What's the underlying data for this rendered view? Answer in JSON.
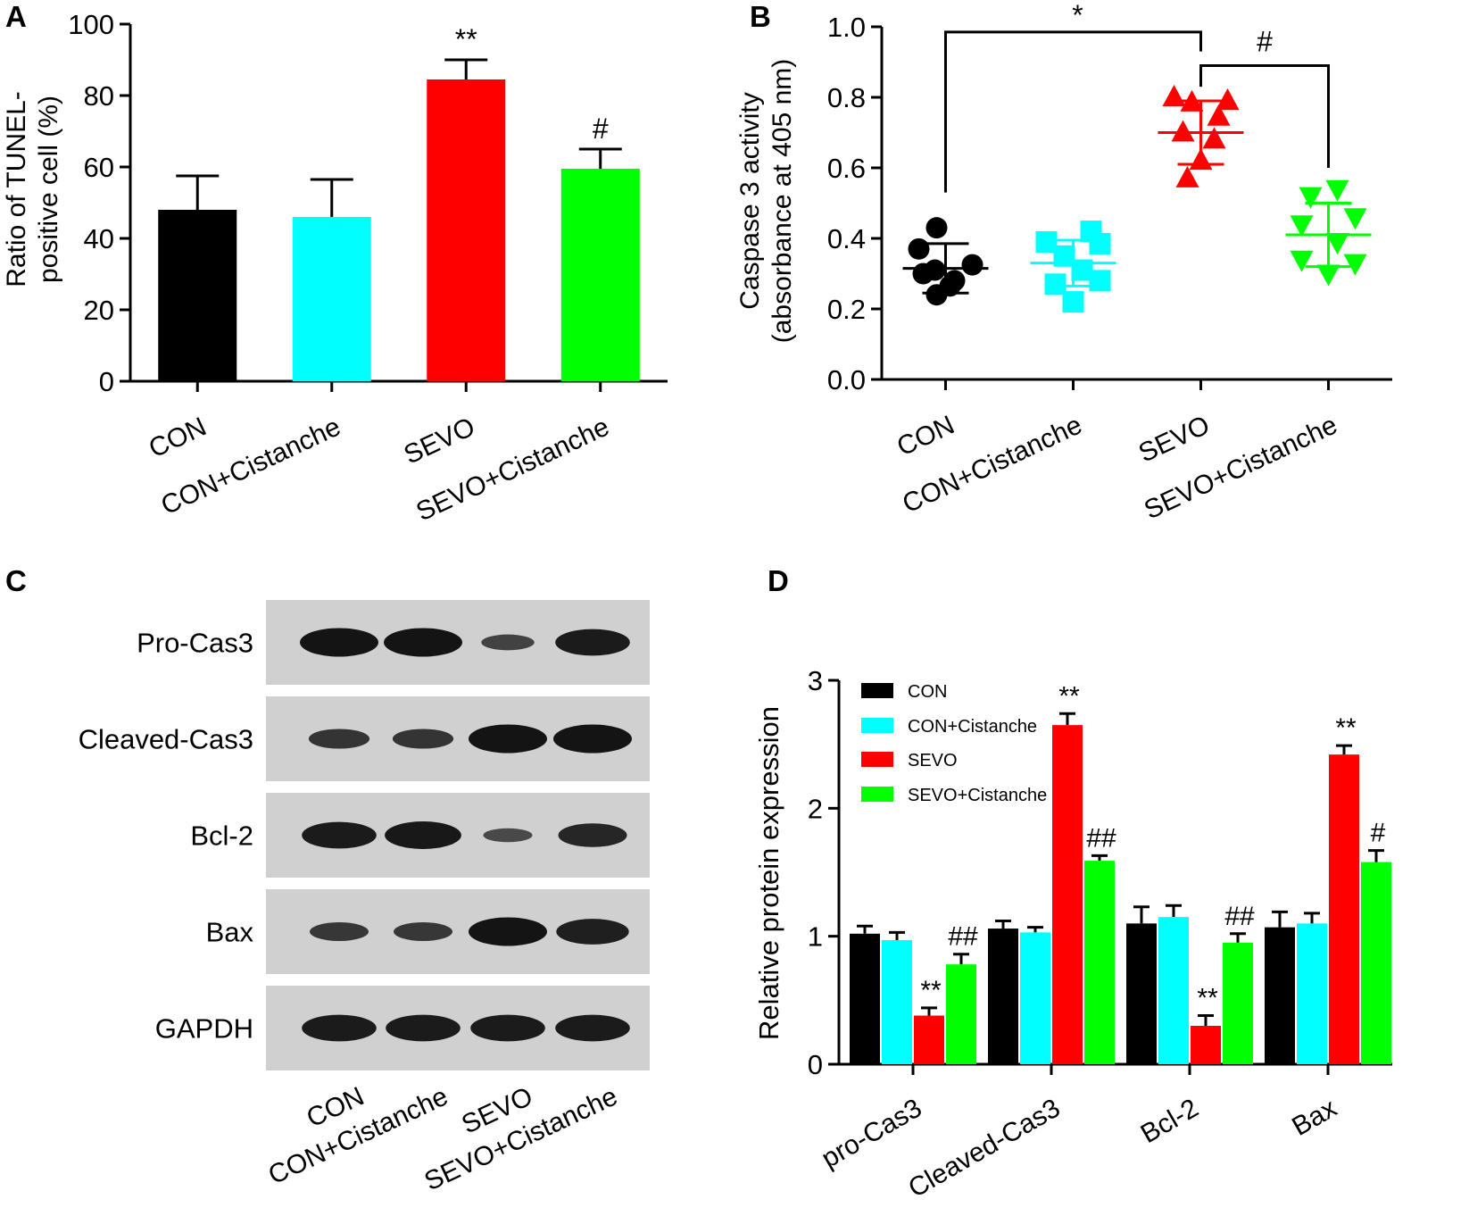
{
  "chart_data": [
    {
      "panel": "A",
      "type": "bar",
      "ylabel": [
        "Ratio of TUNEL-",
        "positive cell (%)"
      ],
      "ylim": [
        0,
        100
      ],
      "yticks": [
        0,
        20,
        40,
        60,
        80,
        100
      ],
      "categories": [
        "CON",
        "CON+Cistanche",
        "SEVO",
        "SEVO+Cistanche"
      ],
      "values": [
        48,
        46,
        84.5,
        59.5
      ],
      "errors": [
        9.5,
        10.5,
        5.5,
        5.5
      ],
      "colors": [
        "#000000",
        "#00ffff",
        "#ff0000",
        "#00ff00"
      ],
      "annotations": [
        "",
        "",
        "**",
        "#"
      ]
    },
    {
      "panel": "B",
      "type": "scatter",
      "ylabel": [
        "Caspase 3 activity",
        "(absorbance at 405 nm)"
      ],
      "ylim": [
        0,
        1.0
      ],
      "yticks": [
        "0.0",
        "0.2",
        "0.4",
        "0.6",
        "0.8",
        "1.0"
      ],
      "categories": [
        "CON",
        "CON+Cistanche",
        "SEVO",
        "SEVO+Cistanche"
      ],
      "markers": [
        "circle",
        "square",
        "triangle-up",
        "triangle-down"
      ],
      "colors": [
        "#000000",
        "#00ffff",
        "#ff0000",
        "#00ff00"
      ],
      "means": [
        0.315,
        0.33,
        0.7,
        0.41
      ],
      "sds": [
        0.07,
        0.065,
        0.09,
        0.09
      ],
      "points": [
        [
          [
            -0.1,
            0.43
          ],
          [
            -0.3,
            0.37
          ],
          [
            0.3,
            0.325
          ],
          [
            -0.12,
            0.31
          ],
          [
            0.1,
            0.28
          ],
          [
            -0.25,
            0.3
          ],
          [
            -0.1,
            0.24
          ],
          [
            0.05,
            0.265
          ]
        ],
        [
          [
            0.2,
            0.42
          ],
          [
            0.3,
            0.385
          ],
          [
            -0.3,
            0.39
          ],
          [
            -0.1,
            0.35
          ],
          [
            0.1,
            0.31
          ],
          [
            -0.2,
            0.27
          ],
          [
            0.3,
            0.28
          ],
          [
            0.0,
            0.22
          ]
        ],
        [
          [
            -0.3,
            0.8
          ],
          [
            0.3,
            0.79
          ],
          [
            -0.1,
            0.785
          ],
          [
            0.2,
            0.745
          ],
          [
            -0.2,
            0.7
          ],
          [
            0.15,
            0.68
          ],
          [
            0.0,
            0.62
          ],
          [
            -0.15,
            0.57
          ]
        ],
        [
          [
            -0.2,
            0.52
          ],
          [
            0.1,
            0.54
          ],
          [
            0.3,
            0.46
          ],
          [
            -0.3,
            0.44
          ],
          [
            0.1,
            0.39
          ],
          [
            -0.3,
            0.34
          ],
          [
            0.3,
            0.33
          ],
          [
            0.0,
            0.3
          ]
        ]
      ],
      "significance": [
        {
          "label": "*",
          "from": 0,
          "to": 2,
          "level": 0.985
        },
        {
          "label": "#",
          "from": 2,
          "to": 3,
          "level": 0.89
        }
      ]
    },
    {
      "panel": "C",
      "type": "table",
      "rows": [
        "Pro-Cas3",
        "Cleaved-Cas3",
        "Bcl-2",
        "Bax",
        "GAPDH"
      ],
      "columns": [
        "CON",
        "CON+Cistanche",
        "SEVO",
        "SEVO+Cistanche"
      ],
      "band_intensity": [
        [
          1.0,
          1.0,
          0.35,
          0.9
        ],
        [
          0.55,
          0.55,
          1.0,
          1.0
        ],
        [
          0.9,
          0.95,
          0.25,
          0.75
        ],
        [
          0.5,
          0.5,
          1.0,
          0.85
        ],
        [
          0.9,
          0.9,
          0.9,
          0.9
        ]
      ]
    },
    {
      "panel": "D",
      "type": "bar",
      "ylabel": "Relative protein expression",
      "ylim": [
        0,
        3
      ],
      "yticks": [
        0,
        1,
        2,
        3
      ],
      "categories": [
        "pro-Cas3",
        "Cleaved-Cas3",
        "Bcl-2",
        "Bax"
      ],
      "series": [
        {
          "name": "CON",
          "color": "#000000",
          "values": [
            1.02,
            1.06,
            1.1,
            1.07
          ],
          "errors": [
            0.06,
            0.06,
            0.13,
            0.12
          ],
          "annotations": [
            "",
            "",
            "",
            ""
          ]
        },
        {
          "name": "CON+Cistanche",
          "color": "#00ffff",
          "values": [
            0.97,
            1.03,
            1.15,
            1.1
          ],
          "errors": [
            0.06,
            0.04,
            0.09,
            0.08
          ],
          "annotations": [
            "",
            "",
            "",
            ""
          ]
        },
        {
          "name": "SEVO",
          "color": "#ff0000",
          "values": [
            0.38,
            2.65,
            0.3,
            2.42
          ],
          "errors": [
            0.06,
            0.09,
            0.08,
            0.07
          ],
          "annotations": [
            "**",
            "**",
            "**",
            "**"
          ]
        },
        {
          "name": "SEVO+Cistanche",
          "color": "#00ff00",
          "values": [
            0.78,
            1.59,
            0.95,
            1.58
          ],
          "errors": [
            0.08,
            0.04,
            0.07,
            0.09
          ],
          "annotations": [
            "##",
            "##",
            "##",
            "#"
          ]
        }
      ],
      "legend": "top-left"
    }
  ]
}
